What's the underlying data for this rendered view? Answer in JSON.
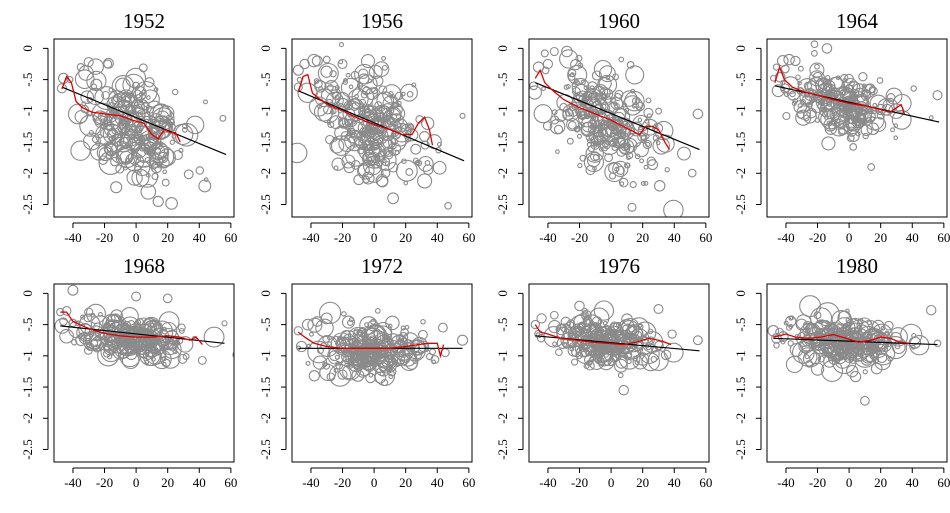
{
  "chart_data": [
    {
      "type": "scatter",
      "title": "1952",
      "xticks": [
        "-40",
        "-20",
        "0",
        "20",
        "40",
        "60"
      ],
      "yticks": [
        "0",
        "-.5",
        "-1",
        "-1.5",
        "-2",
        "-2.5"
      ],
      "xlim": [
        -52,
        62
      ],
      "ylim": [
        -2.7,
        0.15
      ],
      "cloud": {
        "cx": -2,
        "cy": -1.3,
        "sx": 17,
        "sy": 0.38,
        "rmax": 10,
        "n": 260
      },
      "outliers": [
        [
          -46,
          -0.48
        ],
        [
          -42,
          -0.5
        ],
        [
          -35,
          -0.3
        ],
        [
          -30,
          -0.22
        ],
        [
          -18,
          -0.25
        ],
        [
          14,
          -2.45
        ],
        [
          55,
          -1.12
        ],
        [
          -47,
          -0.64
        ],
        [
          12,
          -2.05
        ]
      ],
      "fit": [
        [
          -47,
          -0.62
        ],
        [
          57,
          -1.7
        ]
      ],
      "smooth": [
        [
          -47,
          -0.65
        ],
        [
          -44,
          -0.45
        ],
        [
          -41,
          -0.55
        ],
        [
          -38,
          -0.85
        ],
        [
          -34,
          -0.95
        ],
        [
          -28,
          -1.02
        ],
        [
          -20,
          -1.05
        ],
        [
          -10,
          -1.08
        ],
        [
          -2,
          -1.15
        ],
        [
          5,
          -1.2
        ],
        [
          10,
          -1.38
        ],
        [
          14,
          -1.45
        ],
        [
          18,
          -1.3
        ],
        [
          22,
          -1.35
        ],
        [
          25,
          -1.35
        ],
        [
          28,
          -1.5
        ]
      ]
    },
    {
      "type": "scatter",
      "title": "1956",
      "xticks": [
        "-40",
        "-20",
        "0",
        "20",
        "40",
        "60"
      ],
      "yticks": [
        "0",
        "-.5",
        "-1",
        "-1.5",
        "-2",
        "-2.5"
      ],
      "xlim": [
        -52,
        62
      ],
      "ylim": [
        -2.7,
        0.15
      ],
      "cloud": {
        "cx": -3,
        "cy": -1.2,
        "sx": 17,
        "sy": 0.38,
        "rmax": 9,
        "n": 270
      },
      "outliers": [
        [
          -48,
          -0.35
        ],
        [
          -44,
          -0.25
        ],
        [
          -36,
          -0.2
        ],
        [
          -30,
          -0.18
        ],
        [
          -20,
          -0.25
        ],
        [
          12,
          -2.4
        ],
        [
          56,
          -1.08
        ],
        [
          -48,
          -0.62
        ],
        [
          -5,
          -2.1
        ]
      ],
      "fit": [
        [
          -48,
          -0.68
        ],
        [
          57,
          -1.8
        ]
      ],
      "smooth": [
        [
          -48,
          -0.7
        ],
        [
          -45,
          -0.45
        ],
        [
          -42,
          -0.42
        ],
        [
          -39,
          -0.72
        ],
        [
          -34,
          -0.82
        ],
        [
          -28,
          -0.92
        ],
        [
          -20,
          -1.0
        ],
        [
          -10,
          -1.12
        ],
        [
          0,
          -1.22
        ],
        [
          10,
          -1.3
        ],
        [
          18,
          -1.38
        ],
        [
          24,
          -1.38
        ],
        [
          28,
          -1.2
        ],
        [
          32,
          -1.1
        ],
        [
          35,
          -1.3
        ],
        [
          37,
          -1.55
        ]
      ]
    },
    {
      "type": "scatter",
      "title": "1960",
      "xticks": [
        "-40",
        "-20",
        "0",
        "20",
        "40",
        "60"
      ],
      "yticks": [
        "0",
        "-.5",
        "-1",
        "-1.5",
        "-2",
        "-2.5"
      ],
      "xlim": [
        -52,
        62
      ],
      "ylim": [
        -2.7,
        0.15
      ],
      "cloud": {
        "cx": -4,
        "cy": -1.15,
        "sx": 16,
        "sy": 0.42,
        "rmax": 8,
        "n": 280
      },
      "outliers": [
        [
          -49,
          -0.6
        ],
        [
          -46,
          -0.3
        ],
        [
          -42,
          -0.08
        ],
        [
          -36,
          -0.05
        ],
        [
          -28,
          -0.05
        ],
        [
          8,
          -2.15
        ],
        [
          55,
          -1.05
        ],
        [
          -40,
          -0.25
        ]
      ],
      "fit": [
        [
          -48,
          -0.55
        ],
        [
          56,
          -1.62
        ]
      ],
      "smooth": [
        [
          -48,
          -0.48
        ],
        [
          -45,
          -0.35
        ],
        [
          -42,
          -0.55
        ],
        [
          -38,
          -0.65
        ],
        [
          -30,
          -0.82
        ],
        [
          -20,
          -0.95
        ],
        [
          -10,
          -1.05
        ],
        [
          0,
          -1.15
        ],
        [
          10,
          -1.28
        ],
        [
          18,
          -1.38
        ],
        [
          22,
          -1.25
        ],
        [
          26,
          -1.25
        ],
        [
          30,
          -1.3
        ],
        [
          34,
          -1.5
        ],
        [
          37,
          -1.62
        ]
      ]
    },
    {
      "type": "scatter",
      "title": "1964",
      "xticks": [
        "-40",
        "-20",
        "0",
        "20",
        "40",
        "60"
      ],
      "yticks": [
        "0",
        "-.5",
        "-1",
        "-1.5",
        "-2",
        "-2.5"
      ],
      "xlim": [
        -52,
        62
      ],
      "ylim": [
        -2.7,
        0.15
      ],
      "cloud": {
        "cx": -5,
        "cy": -0.88,
        "sx": 17,
        "sy": 0.24,
        "rmax": 8,
        "n": 260
      },
      "outliers": [
        [
          -46,
          -0.3
        ],
        [
          -42,
          -0.2
        ],
        [
          -38,
          -0.18
        ],
        [
          -34,
          -0.2
        ],
        [
          -22,
          -0.08
        ],
        [
          -14,
          0.0
        ],
        [
          14,
          -1.9
        ],
        [
          56,
          -0.75
        ],
        [
          -48,
          -0.48
        ]
      ],
      "fit": [
        [
          -47,
          -0.6
        ],
        [
          57,
          -1.18
        ]
      ],
      "smooth": [
        [
          -47,
          -0.55
        ],
        [
          -44,
          -0.3
        ],
        [
          -41,
          -0.5
        ],
        [
          -36,
          -0.62
        ],
        [
          -28,
          -0.7
        ],
        [
          -20,
          -0.75
        ],
        [
          -10,
          -0.82
        ],
        [
          0,
          -0.88
        ],
        [
          10,
          -0.92
        ],
        [
          20,
          -0.98
        ],
        [
          26,
          -1.02
        ],
        [
          30,
          -0.95
        ],
        [
          33,
          -0.9
        ],
        [
          35,
          -1.05
        ]
      ]
    },
    {
      "type": "scatter",
      "title": "1968",
      "xticks": [
        "-40",
        "-20",
        "0",
        "20",
        "40",
        "60"
      ],
      "yticks": [
        "0",
        "-.5",
        "-1",
        "-1.5",
        "-2",
        "-2.5"
      ],
      "xlim": [
        -52,
        62
      ],
      "ylim": [
        -2.7,
        0.15
      ],
      "cloud": {
        "cx": -3,
        "cy": -0.72,
        "sx": 17,
        "sy": 0.16,
        "rmax": 9,
        "n": 250
      },
      "outliers": [
        [
          -48,
          -0.3
        ],
        [
          -44,
          -0.28
        ],
        [
          -40,
          0.05
        ],
        [
          0,
          -0.05
        ],
        [
          20,
          -0.08
        ],
        [
          56,
          -0.48
        ],
        [
          -46,
          -0.45
        ],
        [
          -30,
          -0.3
        ]
      ],
      "fit": [
        [
          -48,
          -0.52
        ],
        [
          56,
          -0.8
        ]
      ],
      "smooth": [
        [
          -48,
          -0.3
        ],
        [
          -44,
          -0.3
        ],
        [
          -40,
          -0.45
        ],
        [
          -34,
          -0.52
        ],
        [
          -26,
          -0.6
        ],
        [
          -18,
          -0.65
        ],
        [
          -10,
          -0.68
        ],
        [
          0,
          -0.7
        ],
        [
          10,
          -0.7
        ],
        [
          20,
          -0.68
        ],
        [
          28,
          -0.7
        ],
        [
          34,
          -0.75
        ],
        [
          38,
          -0.7
        ],
        [
          42,
          -0.82
        ]
      ]
    },
    {
      "type": "scatter",
      "title": "1972",
      "xticks": [
        "-40",
        "-20",
        "0",
        "20",
        "40",
        "60"
      ],
      "yticks": [
        "0",
        "-.5",
        "-1",
        "-1.5",
        "-2",
        "-2.5"
      ],
      "xlim": [
        -52,
        62
      ],
      "ylim": [
        -2.7,
        0.15
      ],
      "cloud": {
        "cx": 0,
        "cy": -0.9,
        "sx": 16,
        "sy": 0.2,
        "rmax": 9,
        "n": 270
      },
      "outliers": [
        [
          -48,
          -0.6
        ],
        [
          -46,
          -0.85
        ],
        [
          -42,
          -0.5
        ],
        [
          -36,
          -0.45
        ],
        [
          -30,
          -0.4
        ],
        [
          45,
          -0.95
        ],
        [
          56,
          -0.75
        ],
        [
          -20,
          -1.3
        ]
      ],
      "fit": [
        [
          -48,
          -0.88
        ],
        [
          56,
          -0.88
        ]
      ],
      "smooth": [
        [
          -48,
          -0.62
        ],
        [
          -44,
          -0.7
        ],
        [
          -38,
          -0.8
        ],
        [
          -30,
          -0.85
        ],
        [
          -20,
          -0.88
        ],
        [
          -10,
          -0.88
        ],
        [
          0,
          -0.88
        ],
        [
          10,
          -0.88
        ],
        [
          20,
          -0.85
        ],
        [
          28,
          -0.82
        ],
        [
          34,
          -0.8
        ],
        [
          40,
          -0.8
        ],
        [
          42,
          -1.0
        ],
        [
          44,
          -0.82
        ]
      ]
    },
    {
      "type": "scatter",
      "title": "1976",
      "xticks": [
        "-40",
        "-20",
        "0",
        "20",
        "40",
        "60"
      ],
      "yticks": [
        "0",
        "-.5",
        "-1",
        "-1.5",
        "-2",
        "-2.5"
      ],
      "xlim": [
        -52,
        62
      ],
      "ylim": [
        -2.7,
        0.15
      ],
      "cloud": {
        "cx": -2,
        "cy": -0.78,
        "sx": 17,
        "sy": 0.17,
        "rmax": 9,
        "n": 260
      },
      "outliers": [
        [
          -48,
          -0.5
        ],
        [
          -44,
          -0.4
        ],
        [
          -36,
          -0.35
        ],
        [
          -20,
          -0.2
        ],
        [
          8,
          -1.55
        ],
        [
          55,
          -0.75
        ],
        [
          -46,
          -0.65
        ],
        [
          30,
          -0.25
        ]
      ],
      "fit": [
        [
          -48,
          -0.68
        ],
        [
          56,
          -0.92
        ]
      ],
      "smooth": [
        [
          -48,
          -0.5
        ],
        [
          -45,
          -0.62
        ],
        [
          -40,
          -0.65
        ],
        [
          -32,
          -0.72
        ],
        [
          -22,
          -0.75
        ],
        [
          -12,
          -0.78
        ],
        [
          -2,
          -0.8
        ],
        [
          8,
          -0.82
        ],
        [
          16,
          -0.78
        ],
        [
          24,
          -0.72
        ],
        [
          30,
          -0.75
        ],
        [
          34,
          -0.78
        ],
        [
          38,
          -0.82
        ]
      ]
    },
    {
      "type": "scatter",
      "title": "1980",
      "xticks": [
        "-40",
        "-20",
        "0",
        "20",
        "40",
        "60"
      ],
      "yticks": [
        "0",
        "-.5",
        "-1",
        "-1.5",
        "-2",
        "-2.5"
      ],
      "xlim": [
        -52,
        62
      ],
      "ylim": [
        -2.7,
        0.15
      ],
      "cloud": {
        "cx": -2,
        "cy": -0.76,
        "sx": 17,
        "sy": 0.18,
        "rmax": 10,
        "n": 270
      },
      "outliers": [
        [
          -48,
          -0.6
        ],
        [
          -44,
          -0.62
        ],
        [
          -38,
          -0.55
        ],
        [
          -30,
          -0.5
        ],
        [
          10,
          -1.72
        ],
        [
          56,
          -0.8
        ],
        [
          -46,
          -0.72
        ],
        [
          -20,
          -0.35
        ]
      ],
      "fit": [
        [
          -48,
          -0.72
        ],
        [
          56,
          -0.82
        ]
      ],
      "smooth": [
        [
          -48,
          -0.7
        ],
        [
          -44,
          -0.68
        ],
        [
          -40,
          -0.65
        ],
        [
          -34,
          -0.7
        ],
        [
          -26,
          -0.72
        ],
        [
          -18,
          -0.7
        ],
        [
          -10,
          -0.66
        ],
        [
          -2,
          -0.72
        ],
        [
          6,
          -0.78
        ],
        [
          14,
          -0.75
        ],
        [
          20,
          -0.7
        ],
        [
          26,
          -0.72
        ],
        [
          32,
          -0.78
        ],
        [
          38,
          -0.8
        ]
      ]
    }
  ]
}
